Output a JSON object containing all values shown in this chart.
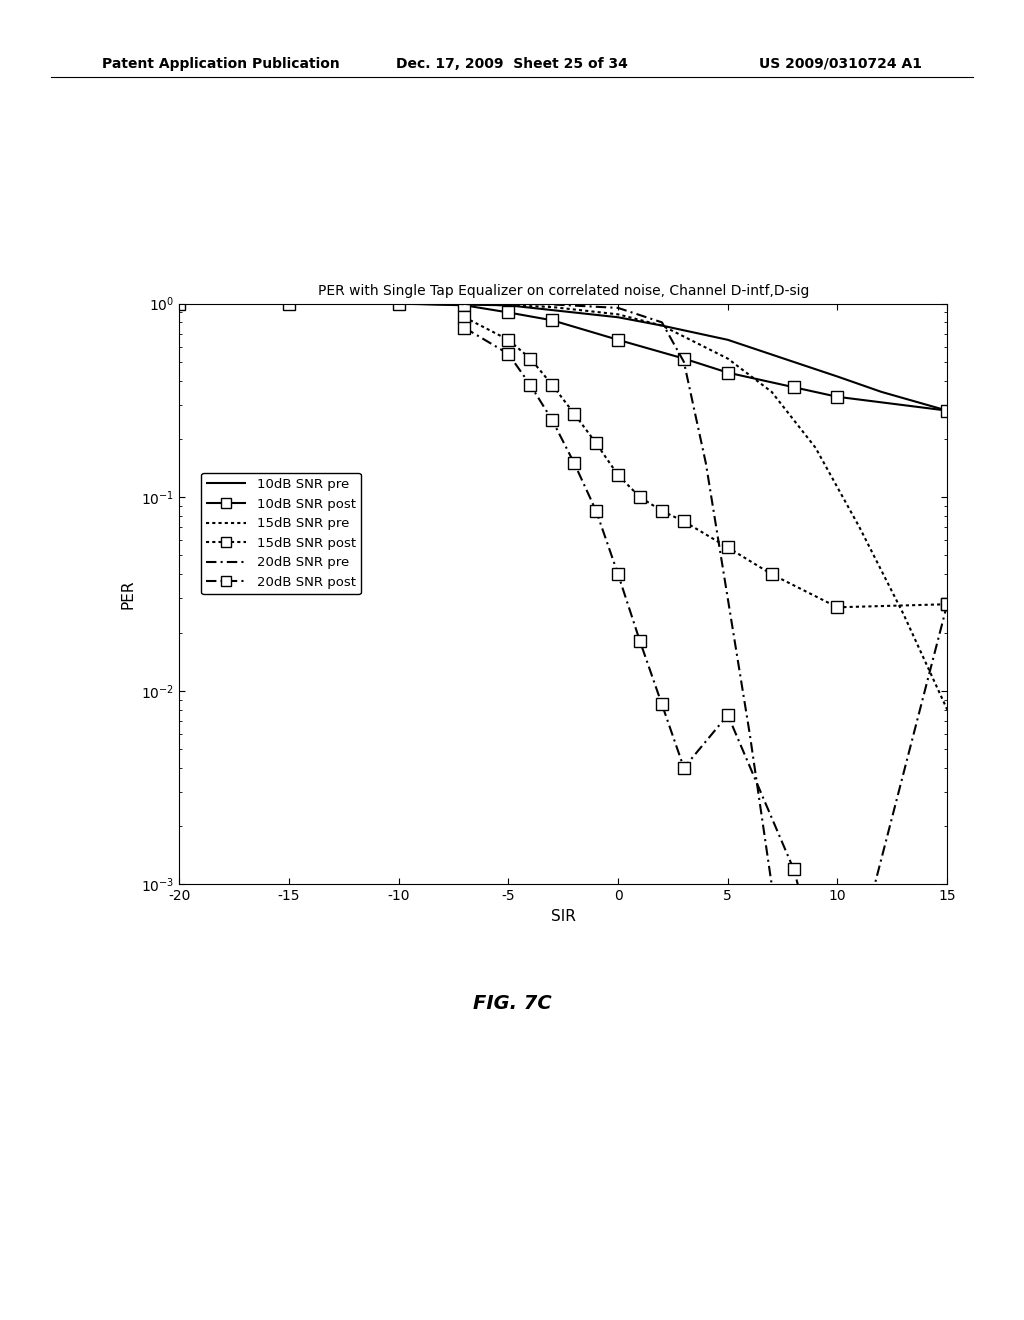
{
  "title": "PER with Single Tap Equalizer on correlated noise, Channel D-intf,D-sig",
  "xlabel": "SIR",
  "ylabel": "PER",
  "xlim": [
    -20,
    15
  ],
  "ylim_log": [
    -3,
    0
  ],
  "background_color": "#ffffff",
  "fig_caption": "FIG. 7C",
  "header_left": "Patent Application Publication",
  "header_center": "Dec. 17, 2009  Sheet 25 of 34",
  "header_right": "US 2009/0310724 A1",
  "curves": {
    "snr10_pre": {
      "x": [
        -20,
        -15,
        -10,
        -5,
        0,
        2,
        5,
        8,
        10,
        12,
        15
      ],
      "y": [
        1.0,
        1.0,
        1.0,
        0.98,
        0.85,
        0.77,
        0.65,
        0.5,
        0.42,
        0.35,
        0.28
      ],
      "style": "solid",
      "color": "black",
      "marker": null,
      "label": "10dB SNR pre",
      "linewidth": 1.5
    },
    "snr10_post": {
      "x": [
        -20,
        -15,
        -10,
        -7,
        -5,
        -3,
        0,
        3,
        5,
        8,
        10,
        15
      ],
      "y": [
        1.0,
        1.0,
        1.0,
        0.98,
        0.9,
        0.82,
        0.65,
        0.52,
        0.44,
        0.37,
        0.33,
        0.28
      ],
      "style": "solid",
      "color": "black",
      "marker": "s",
      "label": "10dB SNR post",
      "linewidth": 1.5
    },
    "snr15_pre": {
      "x": [
        -20,
        -15,
        -10,
        -8,
        -5,
        -3,
        0,
        2,
        5,
        7,
        9,
        11,
        13,
        15
      ],
      "y": [
        1.0,
        1.0,
        1.0,
        1.0,
        0.98,
        0.96,
        0.88,
        0.77,
        0.52,
        0.35,
        0.18,
        0.07,
        0.025,
        0.008
      ],
      "style": "dotted",
      "color": "black",
      "marker": null,
      "label": "15dB SNR pre",
      "linewidth": 1.5
    },
    "snr15_post": {
      "x": [
        -7,
        -5,
        -4,
        -3,
        -2,
        -1,
        0,
        1,
        2,
        3,
        5,
        7,
        10,
        15
      ],
      "y": [
        0.85,
        0.65,
        0.52,
        0.38,
        0.27,
        0.19,
        0.13,
        0.1,
        0.085,
        0.075,
        0.055,
        0.04,
        0.027,
        0.028
      ],
      "style": "dotted",
      "color": "black",
      "marker": "s",
      "label": "15dB SNR post",
      "linewidth": 1.5
    },
    "snr20_pre": {
      "x": [
        -20,
        -15,
        -10,
        -5,
        -3,
        0,
        2,
        3,
        4,
        5,
        6,
        7,
        8
      ],
      "y": [
        1.0,
        1.0,
        1.0,
        1.0,
        0.99,
        0.95,
        0.8,
        0.5,
        0.15,
        0.03,
        0.006,
        0.001,
        0.0002
      ],
      "style": "dashdot",
      "color": "black",
      "marker": null,
      "label": "20dB SNR pre",
      "linewidth": 1.5
    },
    "snr20_post": {
      "x": [
        -7,
        -5,
        -4,
        -3,
        -2,
        -1,
        0,
        1,
        2,
        3,
        5,
        8,
        10,
        15
      ],
      "y": [
        0.75,
        0.55,
        0.38,
        0.25,
        0.15,
        0.085,
        0.04,
        0.018,
        0.0085,
        0.004,
        0.0075,
        0.0012,
        0.00018,
        0.028
      ],
      "style": "dashdot",
      "color": "black",
      "marker": "s",
      "label": "20dB SNR post",
      "linewidth": 1.5
    }
  }
}
